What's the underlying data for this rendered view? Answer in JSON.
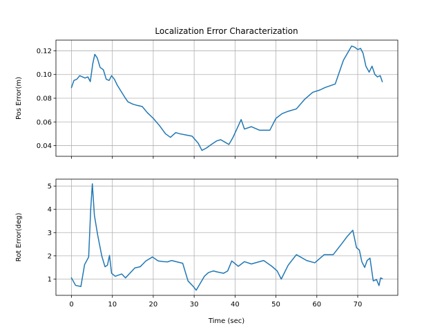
{
  "chart_data": [
    {
      "type": "line",
      "title": "Localization Error Characterization",
      "xlabel": "",
      "ylabel": "Pos Error(m)",
      "xlim": [
        -3.8,
        79.8
      ],
      "ylim": [
        0.031,
        0.129
      ],
      "xticks": [
        0,
        10,
        20,
        30,
        40,
        50,
        60,
        70
      ],
      "xtick_labels_shown": false,
      "yticks": [
        0.04,
        0.06,
        0.08,
        0.1,
        0.12
      ],
      "ytick_labels": [
        "0.04",
        "0.06",
        "0.08",
        "0.10",
        "0.12"
      ],
      "grid": true,
      "color": "#1f77b4",
      "series": [
        {
          "x": [
            0,
            0.6,
            1.3,
            2,
            2.7,
            3.3,
            4,
            4.6,
            5.2,
            5.7,
            6.3,
            7,
            7.8,
            8.5,
            9.2,
            9.8,
            10.5,
            11.2,
            12.1,
            13,
            13.8,
            15,
            16,
            17.3,
            18.5,
            20,
            21.5,
            23,
            24.2,
            25.5,
            26.5,
            28,
            29.5,
            31,
            31.9,
            33,
            34.2,
            35.5,
            36.5,
            37.5,
            38.5,
            39.5,
            40.3,
            41.5,
            42.3,
            44,
            46,
            48.5,
            50,
            51.5,
            53,
            55,
            57,
            59,
            60.8,
            62,
            64.5,
            66.5,
            68.5,
            69.3,
            70,
            70.7,
            71.3,
            72,
            72.8,
            73.5,
            74.2,
            74.8,
            75.5,
            76
          ],
          "y": [
            0.089,
            0.095,
            0.096,
            0.099,
            0.098,
            0.097,
            0.098,
            0.094,
            0.109,
            0.117,
            0.114,
            0.106,
            0.104,
            0.096,
            0.095,
            0.099,
            0.096,
            0.091,
            0.086,
            0.081,
            0.077,
            0.075,
            0.074,
            0.073,
            0.068,
            0.063,
            0.057,
            0.05,
            0.047,
            0.051,
            0.05,
            0.049,
            0.048,
            0.042,
            0.036,
            0.038,
            0.041,
            0.044,
            0.045,
            0.043,
            0.041,
            0.047,
            0.053,
            0.062,
            0.054,
            0.056,
            0.053,
            0.053,
            0.063,
            0.067,
            0.069,
            0.071,
            0.079,
            0.085,
            0.087,
            0.089,
            0.092,
            0.112,
            0.124,
            0.123,
            0.121,
            0.122,
            0.118,
            0.107,
            0.102,
            0.107,
            0.1,
            0.098,
            0.099,
            0.094
          ]
        }
      ]
    },
    {
      "type": "line",
      "title": "",
      "xlabel": "Time (sec)",
      "ylabel": "Rot Error(deg)",
      "xlim": [
        -3.8,
        79.8
      ],
      "ylim": [
        0.3,
        5.3
      ],
      "xticks": [
        0,
        10,
        20,
        30,
        40,
        50,
        60,
        70
      ],
      "xtick_labels": [
        "0",
        "10",
        "20",
        "30",
        "40",
        "50",
        "60",
        "70"
      ],
      "yticks": [
        1,
        2,
        3,
        4,
        5
      ],
      "ytick_labels": [
        "1",
        "2",
        "3",
        "4",
        "5"
      ],
      "grid": true,
      "color": "#1f77b4",
      "series": [
        {
          "x": [
            0,
            1,
            2.3,
            3.2,
            4.2,
            4.7,
            5.1,
            5.6,
            6.4,
            7.4,
            8.2,
            8.8,
            9.3,
            9.8,
            10.7,
            12.3,
            13.2,
            15.5,
            16.8,
            18.2,
            19.8,
            21.2,
            22.5,
            23.5,
            24.5,
            25.8,
            27.2,
            28.5,
            29.8,
            30.5,
            32.5,
            33.5,
            34.7,
            35.8,
            37.2,
            38.2,
            39.2,
            40.8,
            42.3,
            44,
            47,
            49,
            50.3,
            51.3,
            53,
            55,
            57.5,
            59.5,
            61.8,
            64,
            66,
            67.5,
            68.8,
            69.7,
            70.4,
            71,
            71.7,
            72.3,
            73,
            73.8,
            74.6,
            75.2,
            75.6,
            76
          ],
          "y": [
            1.05,
            0.73,
            0.68,
            1.62,
            1.95,
            4.0,
            5.1,
            3.75,
            2.9,
            2.0,
            1.53,
            1.6,
            2.02,
            1.25,
            1.12,
            1.22,
            1.05,
            1.48,
            1.53,
            1.78,
            1.95,
            1.78,
            1.75,
            1.74,
            1.8,
            1.74,
            1.68,
            0.92,
            0.68,
            0.52,
            1.12,
            1.28,
            1.35,
            1.3,
            1.25,
            1.35,
            1.78,
            1.55,
            1.75,
            1.65,
            1.8,
            1.55,
            1.35,
            1.0,
            1.6,
            2.05,
            1.8,
            1.7,
            2.05,
            2.05,
            2.5,
            2.85,
            3.1,
            2.35,
            2.25,
            1.75,
            1.5,
            1.8,
            1.9,
            0.92,
            0.98,
            0.72,
            1.05,
            1.02
          ]
        }
      ]
    }
  ]
}
